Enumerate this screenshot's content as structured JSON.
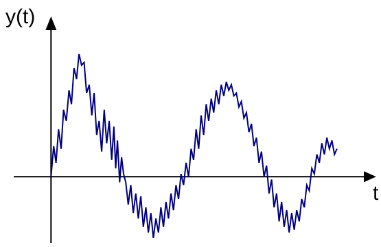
{
  "chart_data": {
    "type": "line",
    "title": "",
    "xlabel": "t",
    "ylabel": "y(t)",
    "grid": false,
    "legend": "none",
    "xlim": [
      -0.2,
      1.78
    ],
    "ylim": [
      -0.46,
      1.15
    ],
    "series": [
      {
        "color": "#000080",
        "x": [
          0.0,
          0.015,
          0.028,
          0.042,
          0.056,
          0.07,
          0.085,
          0.1,
          0.114,
          0.128,
          0.142,
          0.156,
          0.17,
          0.184,
          0.198,
          0.213,
          0.227,
          0.24,
          0.254,
          0.268,
          0.282,
          0.296,
          0.31,
          0.324,
          0.338,
          0.35,
          0.36,
          0.37,
          0.382,
          0.393,
          0.404,
          0.416,
          0.43,
          0.444,
          0.458,
          0.472,
          0.486,
          0.5,
          0.514,
          0.528,
          0.542,
          0.556,
          0.57,
          0.584,
          0.598,
          0.612,
          0.626,
          0.64,
          0.654,
          0.668,
          0.682,
          0.696,
          0.71,
          0.724,
          0.738,
          0.752,
          0.766,
          0.78,
          0.794,
          0.808,
          0.822,
          0.836,
          0.85,
          0.864,
          0.878,
          0.892,
          0.906,
          0.92,
          0.934,
          0.948,
          0.962,
          0.976,
          0.99,
          1.004,
          1.018,
          1.032,
          1.046,
          1.06,
          1.074,
          1.088,
          1.102,
          1.116,
          1.13,
          1.144,
          1.158,
          1.172,
          1.186,
          1.2,
          1.214,
          1.228,
          1.242,
          1.256,
          1.27,
          1.284,
          1.298,
          1.312,
          1.326,
          1.34,
          1.354,
          1.368,
          1.382,
          1.396,
          1.41,
          1.424,
          1.438,
          1.452,
          1.466,
          1.48,
          1.494,
          1.508,
          1.522,
          1.536,
          1.55,
          1.564,
          1.578,
          1.592
        ],
        "y": [
          0.0,
          0.22,
          0.1,
          0.34,
          0.2,
          0.48,
          0.4,
          0.62,
          0.52,
          0.78,
          0.7,
          0.88,
          0.8,
          0.82,
          0.6,
          0.66,
          0.44,
          0.6,
          0.3,
          0.4,
          0.18,
          0.48,
          0.24,
          0.4,
          0.12,
          0.36,
          0.06,
          0.26,
          -0.04,
          0.14,
          0.02,
          -0.04,
          -0.2,
          -0.06,
          -0.26,
          -0.12,
          -0.3,
          -0.14,
          -0.36,
          -0.22,
          -0.4,
          -0.26,
          -0.44,
          -0.3,
          -0.4,
          -0.22,
          -0.36,
          -0.18,
          -0.3,
          -0.12,
          -0.24,
          -0.06,
          -0.16,
          0.02,
          -0.06,
          0.1,
          0.0,
          0.2,
          0.12,
          0.34,
          0.2,
          0.44,
          0.3,
          0.52,
          0.4,
          0.56,
          0.46,
          0.62,
          0.52,
          0.66,
          0.58,
          0.68,
          0.62,
          0.66,
          0.58,
          0.6,
          0.5,
          0.54,
          0.42,
          0.46,
          0.32,
          0.38,
          0.22,
          0.28,
          0.1,
          0.18,
          0.0,
          0.08,
          -0.12,
          -0.02,
          -0.22,
          -0.12,
          -0.32,
          -0.18,
          -0.36,
          -0.24,
          -0.4,
          -0.26,
          -0.38,
          -0.24,
          -0.32,
          -0.16,
          -0.22,
          -0.06,
          -0.1,
          0.06,
          0.02,
          0.16,
          0.1,
          0.24,
          0.16,
          0.28,
          0.2,
          0.26,
          0.16,
          0.2
        ]
      }
    ]
  }
}
